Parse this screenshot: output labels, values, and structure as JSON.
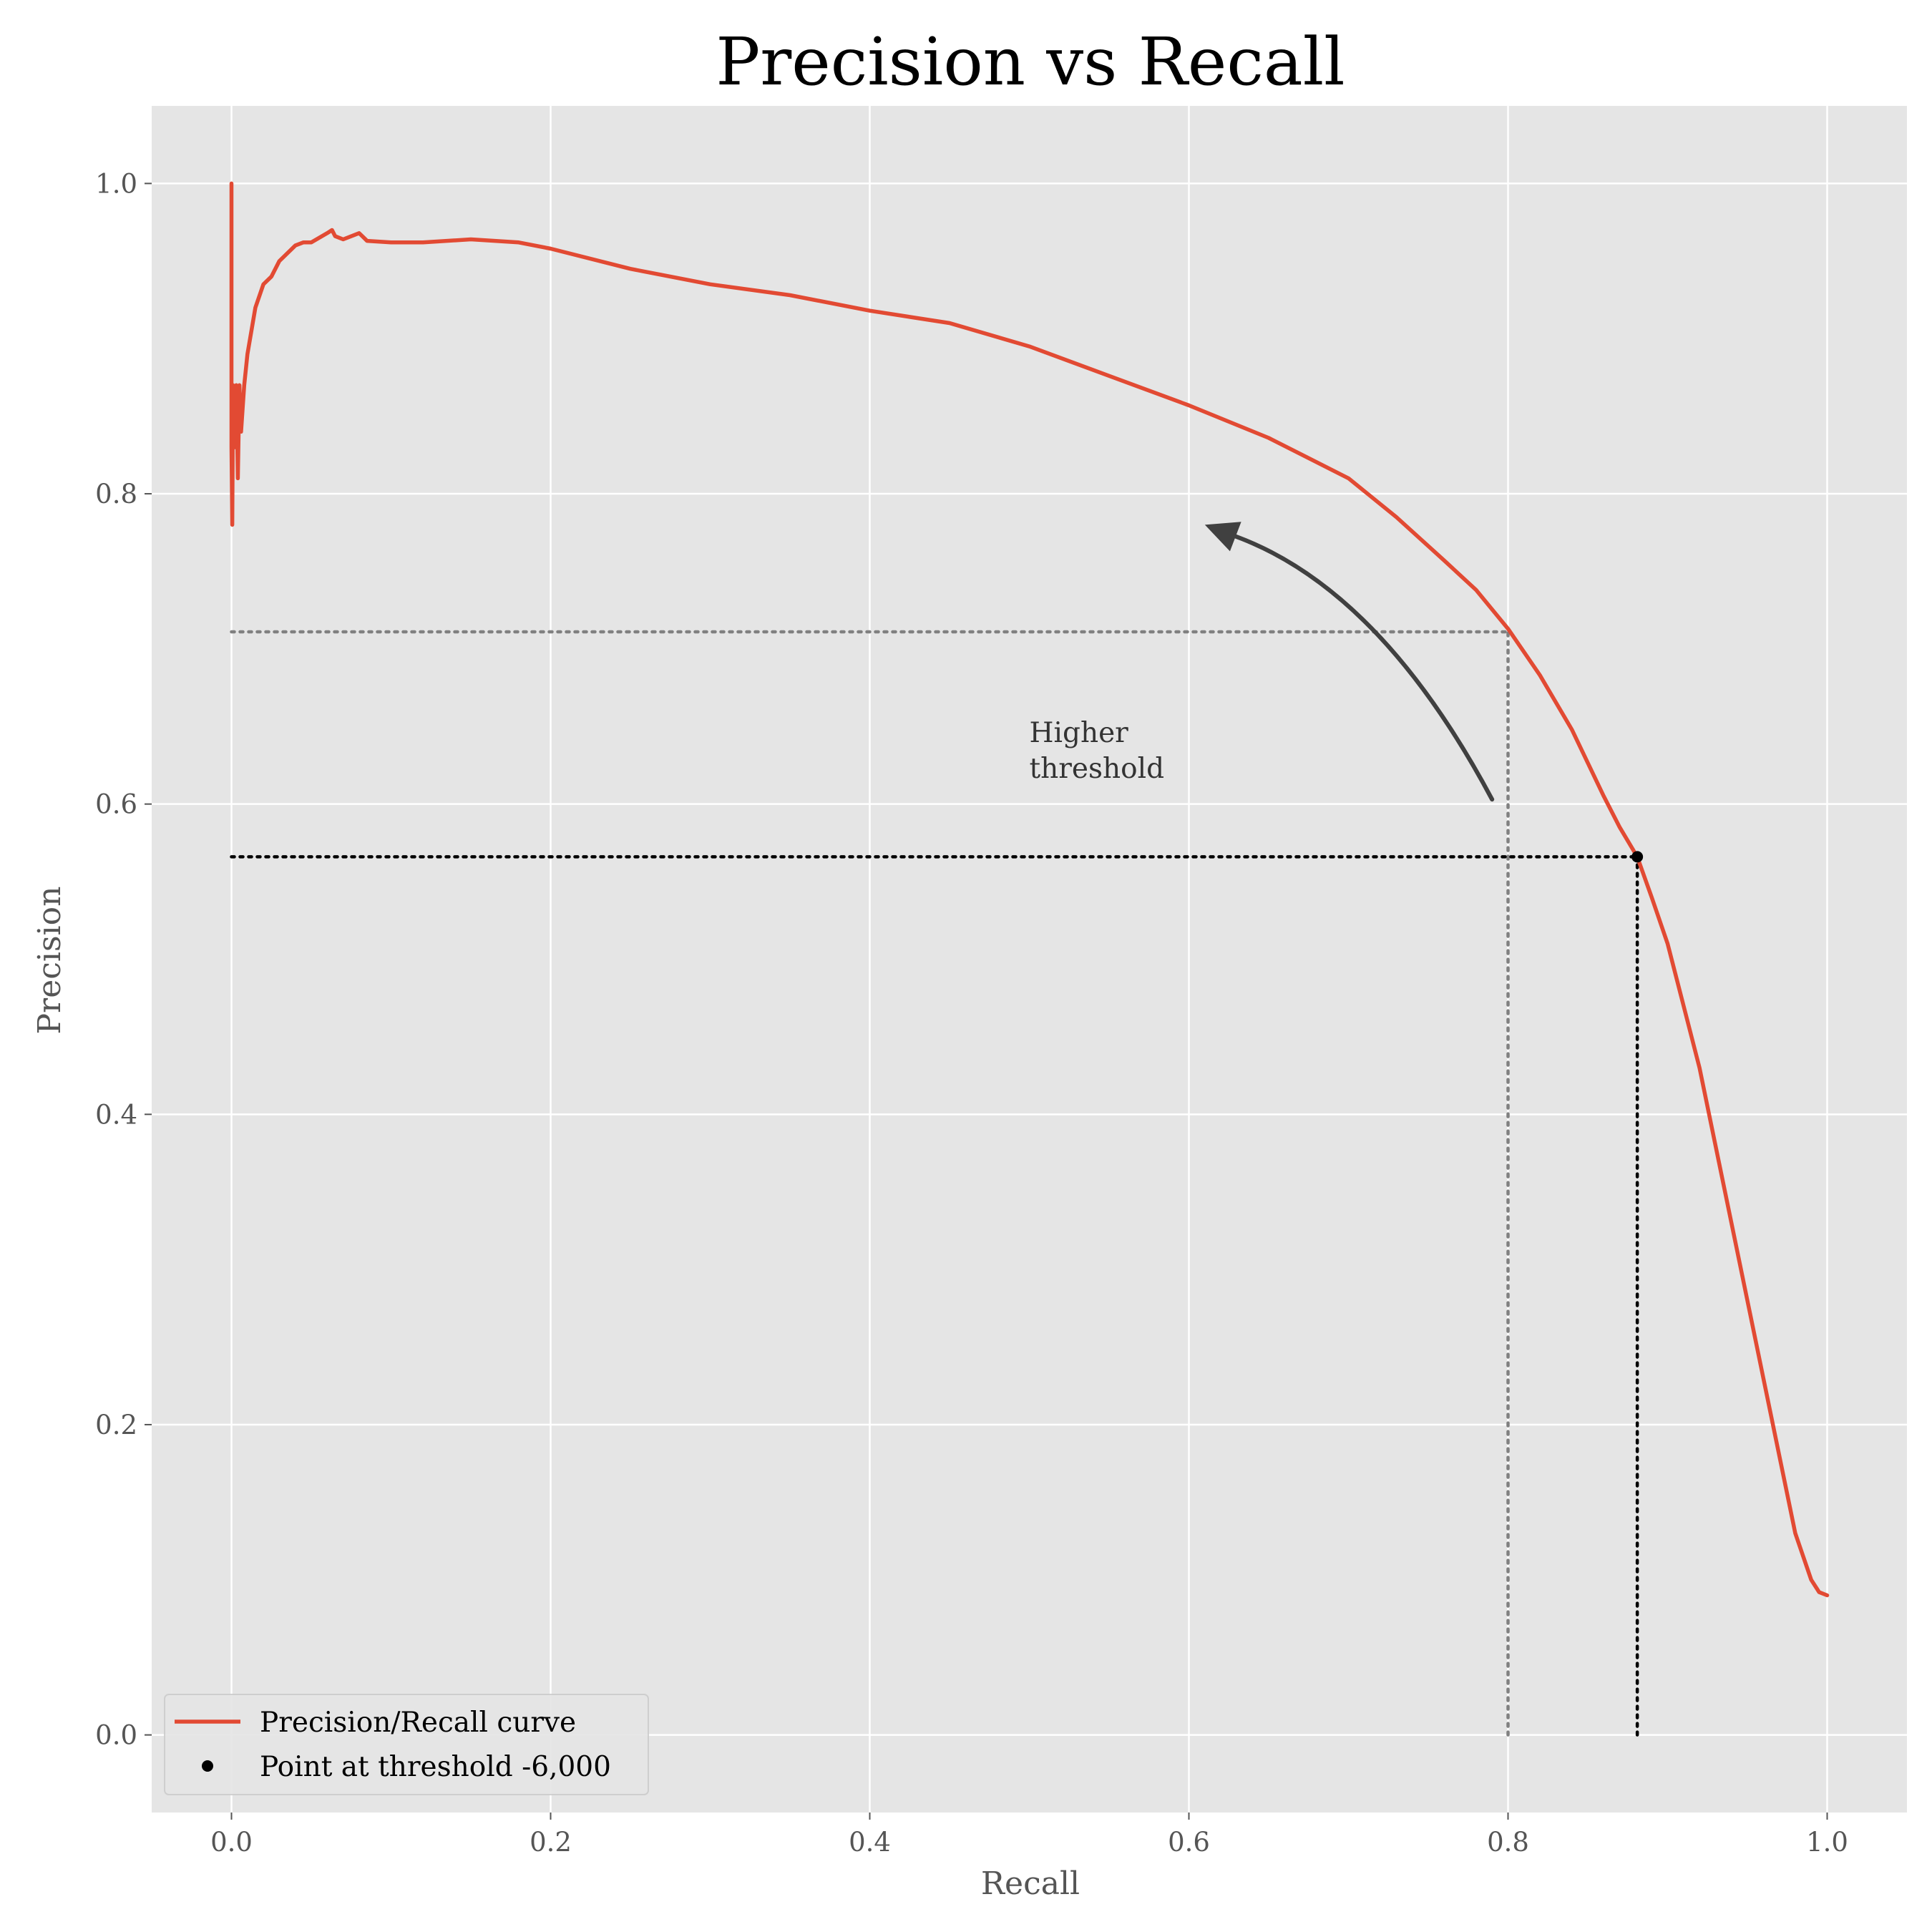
{
  "chart_data": {
    "type": "line",
    "title": "Precision vs Recall",
    "xlabel": "Recall",
    "ylabel": "Precision",
    "xlim": [
      -0.05,
      1.05
    ],
    "ylim": [
      -0.05,
      1.05
    ],
    "grid": true,
    "legend_position": "lower-left",
    "xticks": [
      "0.0",
      "0.2",
      "0.4",
      "0.6",
      "0.8",
      "1.0"
    ],
    "yticks": [
      "0.0",
      "0.2",
      "0.4",
      "0.6",
      "0.8",
      "1.0"
    ],
    "series": [
      {
        "name": "Precision/Recall curve",
        "color": "#E24A33",
        "x": [
          0.0,
          0.0,
          0.0005,
          0.001,
          0.002,
          0.003,
          0.004,
          0.005,
          0.006,
          0.008,
          0.01,
          0.015,
          0.02,
          0.025,
          0.03,
          0.04,
          0.045,
          0.05,
          0.06,
          0.063,
          0.065,
          0.07,
          0.08,
          0.085,
          0.1,
          0.12,
          0.15,
          0.18,
          0.2,
          0.25,
          0.3,
          0.35,
          0.4,
          0.45,
          0.5,
          0.55,
          0.6,
          0.65,
          0.7,
          0.73,
          0.76,
          0.78,
          0.8,
          0.82,
          0.84,
          0.86,
          0.87,
          0.881,
          0.89,
          0.9,
          0.91,
          0.92,
          0.93,
          0.94,
          0.95,
          0.96,
          0.97,
          0.98,
          0.99,
          0.995,
          1.0
        ],
        "y": [
          1.0,
          0.83,
          0.78,
          0.87,
          0.83,
          0.87,
          0.81,
          0.87,
          0.84,
          0.87,
          0.89,
          0.92,
          0.935,
          0.94,
          0.95,
          0.96,
          0.962,
          0.962,
          0.968,
          0.97,
          0.966,
          0.964,
          0.968,
          0.963,
          0.962,
          0.962,
          0.964,
          0.962,
          0.958,
          0.945,
          0.935,
          0.928,
          0.918,
          0.91,
          0.895,
          0.876,
          0.857,
          0.836,
          0.81,
          0.785,
          0.757,
          0.738,
          0.713,
          0.683,
          0.648,
          0.605,
          0.585,
          0.566,
          0.54,
          0.51,
          0.47,
          0.43,
          0.38,
          0.33,
          0.28,
          0.23,
          0.18,
          0.13,
          0.1,
          0.092,
          0.09
        ]
      }
    ],
    "point": {
      "name": "Point at threshold -6,000",
      "x": 0.881,
      "y": 0.566,
      "color": "#000000"
    },
    "reference_point": {
      "x": 0.8,
      "y": 0.711
    },
    "annotation": {
      "text_line1": "Higher",
      "text_line2": "threshold",
      "text_x": 0.5,
      "text_y": 0.64,
      "arrow_start_x": 0.79,
      "arrow_start_y": 0.603,
      "arrow_end_x": 0.61,
      "arrow_end_y": 0.78
    },
    "colors": {
      "background": "#E5E5E5",
      "grid": "#FFFFFF",
      "ref_line": "#808080",
      "point_line": "#000000",
      "arrow": "#404040"
    }
  }
}
